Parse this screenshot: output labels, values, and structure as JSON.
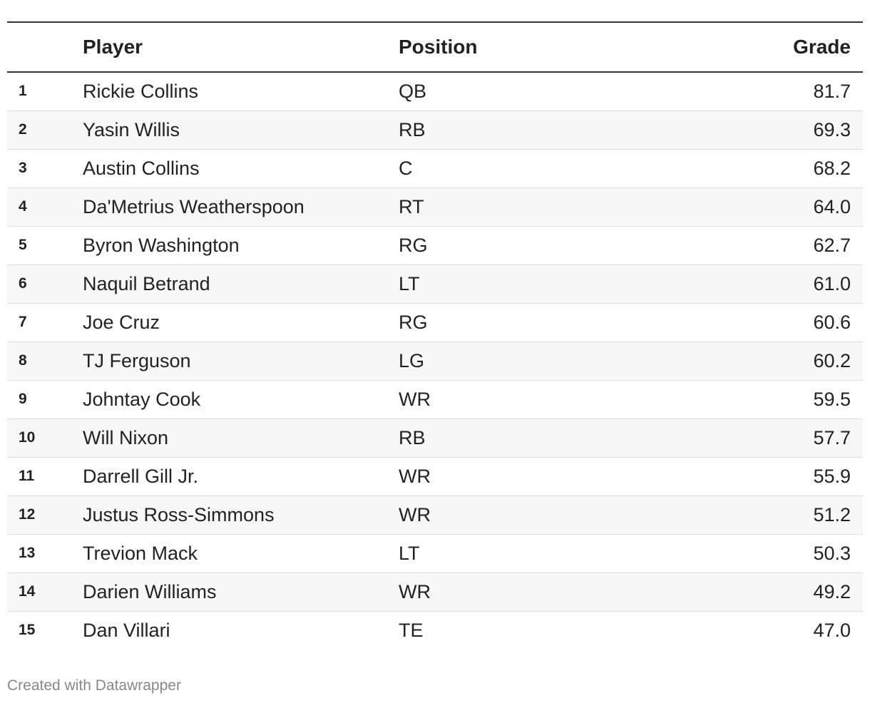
{
  "chart_data": {
    "type": "table",
    "columns": [
      "",
      "Player",
      "Position",
      "Grade"
    ],
    "rows": [
      {
        "rank": "1",
        "player": "Rickie Collins",
        "position": "QB",
        "grade": "81.7"
      },
      {
        "rank": "2",
        "player": "Yasin Willis",
        "position": "RB",
        "grade": "69.3"
      },
      {
        "rank": "3",
        "player": "Austin Collins",
        "position": "C",
        "grade": "68.2"
      },
      {
        "rank": "4",
        "player": "Da'Metrius Weatherspoon",
        "position": "RT",
        "grade": "64.0"
      },
      {
        "rank": "5",
        "player": "Byron Washington",
        "position": "RG",
        "grade": "62.7"
      },
      {
        "rank": "6",
        "player": "Naquil Betrand",
        "position": "LT",
        "grade": "61.0"
      },
      {
        "rank": "7",
        "player": "Joe Cruz",
        "position": "RG",
        "grade": "60.6"
      },
      {
        "rank": "8",
        "player": "TJ Ferguson",
        "position": "LG",
        "grade": "60.2"
      },
      {
        "rank": "9",
        "player": "Johntay Cook",
        "position": "WR",
        "grade": "59.5"
      },
      {
        "rank": "10",
        "player": "Will Nixon",
        "position": "RB",
        "grade": "57.7"
      },
      {
        "rank": "11",
        "player": "Darrell Gill Jr.",
        "position": "WR",
        "grade": "55.9"
      },
      {
        "rank": "12",
        "player": "Justus Ross-Simmons",
        "position": "WR",
        "grade": "51.2"
      },
      {
        "rank": "13",
        "player": "Trevion Mack",
        "position": "LT",
        "grade": "50.3"
      },
      {
        "rank": "14",
        "player": "Darien Williams",
        "position": "WR",
        "grade": "49.2"
      },
      {
        "rank": "15",
        "player": "Dan Villari",
        "position": "TE",
        "grade": "47.0"
      }
    ]
  },
  "footer": {
    "credit": "Created with Datawrapper"
  }
}
